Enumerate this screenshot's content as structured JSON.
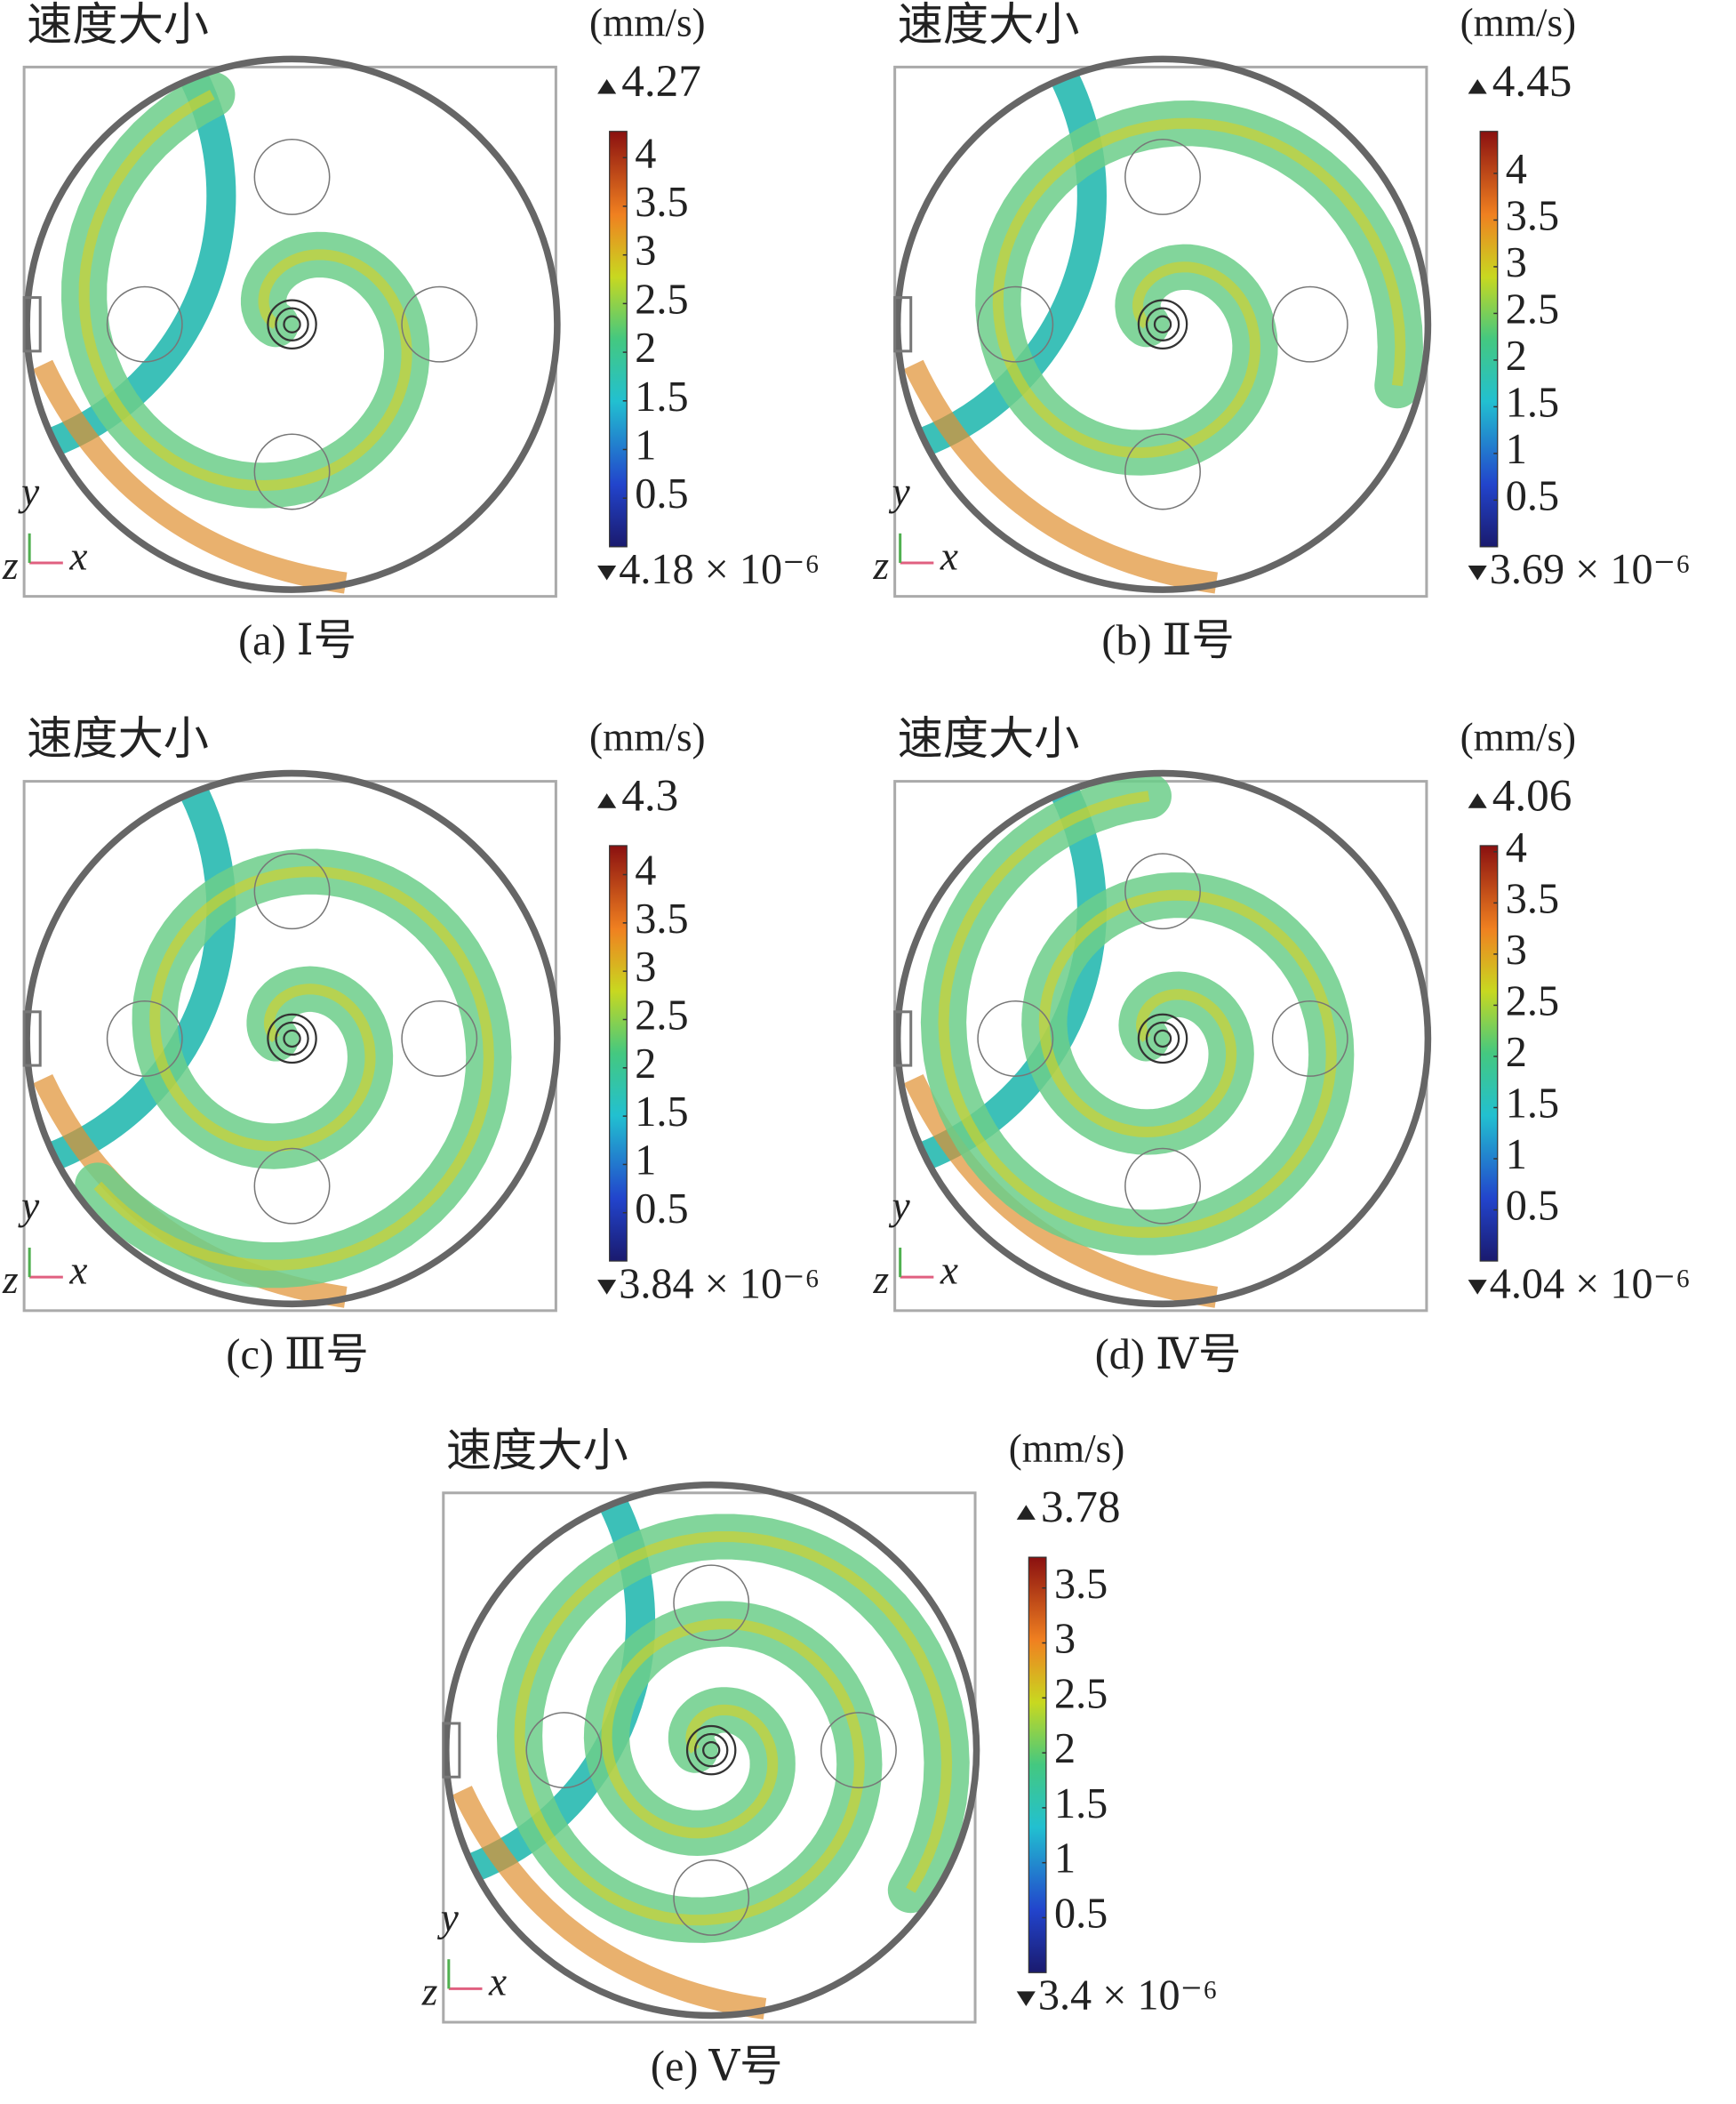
{
  "chart_data": [
    {
      "type": "colorbar",
      "title": "速度大小",
      "unit": "(mm/s)",
      "max": 4.27,
      "min": {
        "value": 4.18e-06,
        "label": "4.18 × 10⁻⁶"
      },
      "yticks": [
        4,
        3.5,
        3,
        2.5,
        2,
        1.5,
        1,
        0.5
      ],
      "axis_labels": {
        "y": "y",
        "z": "z",
        "x": "x"
      },
      "caption": "(a) Ⅰ号"
    },
    {
      "type": "colorbar",
      "title": "速度大小",
      "unit": "(mm/s)",
      "max": 4.45,
      "min": {
        "value": 3.69e-06,
        "label": "3.69 × 10⁻⁶"
      },
      "yticks": [
        4,
        3.5,
        3,
        2.5,
        2,
        1.5,
        1,
        0.5
      ],
      "axis_labels": {
        "y": "y",
        "z": "z",
        "x": "x"
      },
      "caption": "(b) Ⅱ号"
    },
    {
      "type": "colorbar",
      "title": "速度大小",
      "unit": "(mm/s)",
      "max": 4.3,
      "min": {
        "value": 3.84e-06,
        "label": "3.84 × 10⁻⁶"
      },
      "yticks": [
        4,
        3.5,
        3,
        2.5,
        2,
        1.5,
        1,
        0.5
      ],
      "axis_labels": {
        "y": "y",
        "z": "z",
        "x": "x"
      },
      "caption": "(c) Ⅲ号"
    },
    {
      "type": "colorbar",
      "title": "速度大小",
      "unit": "(mm/s)",
      "max": 4.06,
      "min": {
        "value": 4.04e-06,
        "label": "4.04 × 10⁻⁶"
      },
      "yticks": [
        4,
        3.5,
        3,
        2.5,
        2,
        1.5,
        1,
        0.5
      ],
      "axis_labels": {
        "y": "y",
        "z": "z",
        "x": "x"
      },
      "caption": "(d) Ⅳ号"
    },
    {
      "type": "colorbar",
      "title": "速度大小",
      "unit": "(mm/s)",
      "max": 3.78,
      "min": {
        "value": 3.4e-06,
        "label": "3.4 × 10⁻⁶"
      },
      "yticks": [
        3.5,
        3,
        2.5,
        2,
        1.5,
        1,
        0.5
      ],
      "axis_labels": {
        "y": "y",
        "z": "z",
        "x": "x"
      },
      "caption": "(e) Ⅴ号"
    }
  ]
}
